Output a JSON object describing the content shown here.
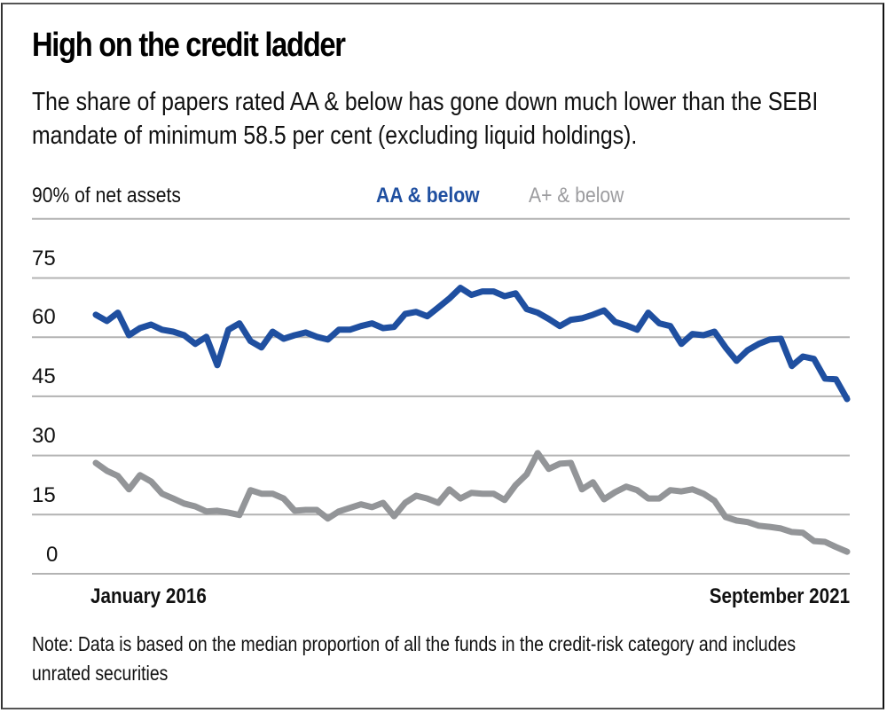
{
  "header": {
    "title": "High on the credit ladder",
    "subtitle": "The share of papers rated AA & below has gone down much lower than the SEBI mandate of minimum 58.5 per cent (excluding liquid holdings)."
  },
  "axis": {
    "y_title": "90% of net assets",
    "y_ticks": [
      "75",
      "60",
      "45",
      "30",
      "15",
      "0"
    ],
    "x_start_label": "January 2016",
    "x_end_label": "September 2021"
  },
  "legend": {
    "series_1": "AA & below",
    "series_2": "A+ & below"
  },
  "colors": {
    "series_1": "#1f4fa0",
    "series_2": "#939598",
    "legend_2": "#9c9c9f",
    "grid": "#b3b3b3"
  },
  "footer": {
    "note": "Note: Data is based on the median proportion of all the funds in the credit-risk category and includes unrated securities"
  },
  "chart_data": {
    "type": "line",
    "title": "High on the credit ladder",
    "subtitle": "The share of papers rated AA & below has gone down much lower than the SEBI mandate of minimum 58.5 per cent (excluding liquid holdings).",
    "xlabel": "",
    "ylabel": "% of net assets",
    "ylim": [
      0,
      90
    ],
    "y_ticks": [
      0,
      15,
      30,
      45,
      60,
      75,
      90
    ],
    "grid": true,
    "legend_position": "top",
    "x_range": [
      "January 2016",
      "September 2021"
    ],
    "x_frequency": "monthly",
    "x_tick_labels": [
      "January 2016",
      "September 2021"
    ],
    "series": [
      {
        "name": "AA & below",
        "color": "#1f4fa0",
        "values": [
          65.7,
          64.1,
          66.2,
          60.5,
          62.3,
          63.2,
          61.9,
          61.4,
          60.5,
          58.3,
          60.1,
          52.9,
          61.9,
          63.5,
          59.0,
          57.4,
          61.4,
          59.6,
          60.5,
          61.2,
          60.1,
          59.4,
          61.9,
          61.9,
          62.8,
          63.5,
          62.3,
          62.6,
          65.9,
          66.4,
          65.3,
          67.5,
          69.8,
          72.5,
          70.7,
          71.6,
          71.6,
          70.4,
          71.1,
          67.1,
          66.2,
          64.6,
          62.8,
          64.4,
          64.8,
          65.7,
          66.8,
          63.9,
          63.0,
          61.9,
          66.2,
          63.5,
          62.8,
          58.3,
          60.8,
          60.5,
          61.4,
          57.4,
          54.0,
          56.7,
          58.3,
          59.4,
          59.6,
          52.7,
          55.1,
          54.5,
          49.5,
          49.3,
          44.3
        ]
      },
      {
        "name": "A+ & below",
        "color": "#939598",
        "values": [
          28.1,
          26.1,
          24.8,
          21.4,
          25.0,
          23.4,
          20.3,
          19.1,
          17.8,
          17.1,
          15.8,
          16.0,
          15.5,
          14.9,
          21.2,
          20.3,
          20.3,
          19.1,
          16.0,
          16.2,
          16.2,
          14.0,
          15.8,
          16.7,
          17.6,
          16.9,
          18.0,
          14.6,
          18.0,
          19.8,
          19.1,
          18.0,
          21.4,
          19.1,
          20.5,
          20.3,
          20.3,
          18.7,
          22.5,
          25.2,
          30.6,
          26.6,
          27.9,
          28.1,
          21.4,
          23.2,
          18.9,
          20.7,
          22.1,
          21.2,
          19.1,
          19.1,
          21.2,
          20.9,
          21.4,
          20.3,
          18.5,
          14.4,
          13.5,
          13.1,
          12.2,
          11.9,
          11.5,
          10.6,
          10.4,
          8.3,
          8.1,
          6.8,
          5.6
        ]
      }
    ],
    "annotations": [
      "Note: Data is based on the median proportion of all the funds in the credit-risk category and includes unrated securities"
    ]
  }
}
